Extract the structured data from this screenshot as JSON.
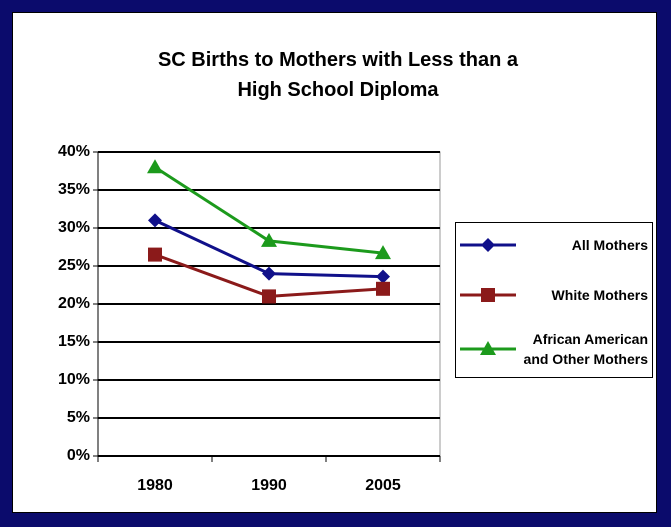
{
  "chart_data": {
    "type": "line",
    "title": "SC Births to Mothers with Less than a High School Diploma",
    "categories": [
      "1980",
      "1990",
      "2005"
    ],
    "series": [
      {
        "name": "All Mothers",
        "color": "#10108a",
        "marker": "diamond",
        "values": [
          31,
          24,
          23.6
        ]
      },
      {
        "name": "White Mothers",
        "color": "#8b1a1a",
        "marker": "square",
        "values": [
          26.5,
          21,
          22
        ]
      },
      {
        "name": "African American and Other Mothers",
        "color": "#1c9a1c",
        "marker": "triangle",
        "values": [
          38,
          28.3,
          26.7
        ]
      }
    ],
    "ylim": [
      0,
      40
    ],
    "yticks": [
      {
        "value": 0,
        "label": "0%"
      },
      {
        "value": 5,
        "label": "5%"
      },
      {
        "value": 10,
        "label": "10%"
      },
      {
        "value": 15,
        "label": "15%"
      },
      {
        "value": 20,
        "label": "20%"
      },
      {
        "value": 25,
        "label": "25%"
      },
      {
        "value": 30,
        "label": "30%"
      },
      {
        "value": 35,
        "label": "35%"
      },
      {
        "value": 40,
        "label": "40%"
      }
    ],
    "grid": true,
    "legend": "right"
  }
}
